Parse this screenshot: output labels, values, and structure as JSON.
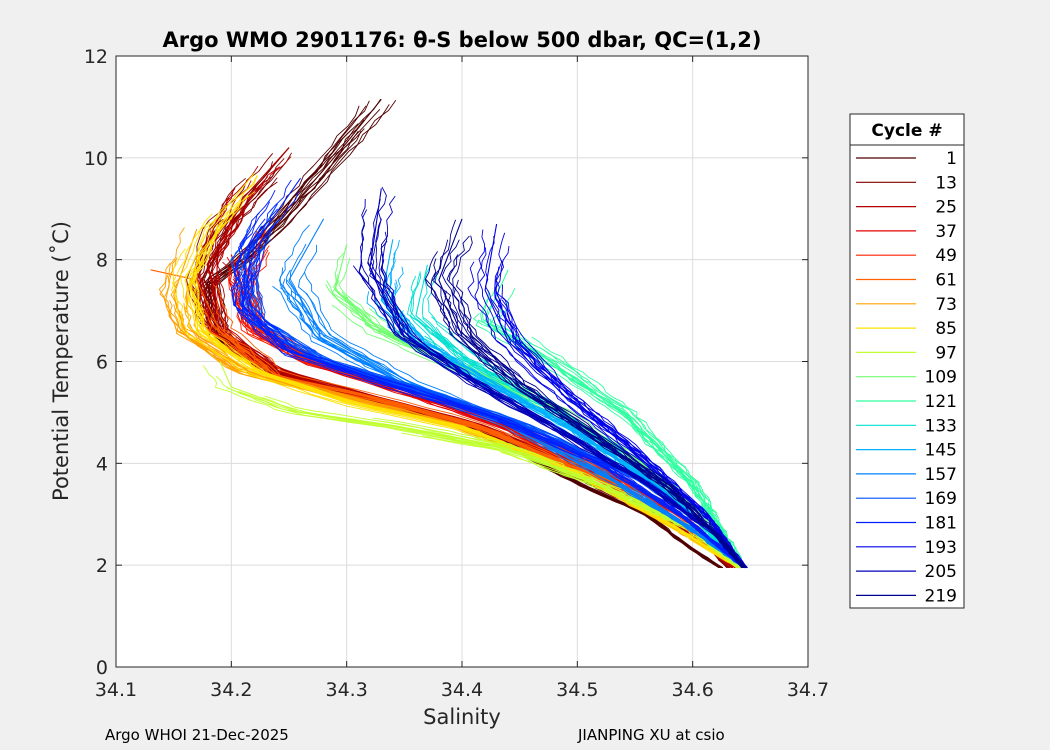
{
  "chart_data": {
    "type": "line",
    "title": "Argo WMO 2901176: θ-S below 500 dbar,  QC=(1,2)",
    "xlabel": "Salinity",
    "ylabel": "Potential Temperature (˚C)",
    "xlim": [
      34.1,
      34.7
    ],
    "ylim": [
      0,
      12
    ],
    "xticks": [
      34.1,
      34.2,
      34.3,
      34.4,
      34.5,
      34.6,
      34.7
    ],
    "xtick_labels": [
      "34.1",
      "34.2",
      "34.3",
      "34.4",
      "34.5",
      "34.6",
      "34.7"
    ],
    "yticks": [
      0,
      2,
      4,
      6,
      8,
      10,
      12
    ],
    "ytick_labels": [
      "0",
      "2",
      "4",
      "6",
      "8",
      "10",
      "12"
    ],
    "grid": true,
    "colormap": "jet",
    "legend": {
      "title": "Cycle #",
      "placement": "outside-right",
      "entries": [
        "1",
        "13",
        "25",
        "37",
        "49",
        "61",
        "73",
        "85",
        "97",
        "109",
        "121",
        "133",
        "145",
        "157",
        "169",
        "181",
        "193",
        "205",
        "219"
      ]
    },
    "series": [
      {
        "name": "1",
        "color": "#500000",
        "x": [
          34.33,
          34.3,
          34.27,
          34.24,
          34.21,
          34.18,
          34.19,
          34.25,
          34.33,
          34.42,
          34.5,
          34.56,
          34.6,
          34.625
        ],
        "y": [
          11.15,
          10.3,
          9.5,
          8.7,
          8.0,
          7.5,
          6.4,
          5.6,
          5.2,
          4.6,
          3.6,
          3.0,
          2.3,
          1.95
        ]
      },
      {
        "name": "13",
        "color": "#800000",
        "x": [
          34.25,
          34.22,
          34.19,
          34.17,
          34.18,
          34.24,
          34.33,
          34.43,
          34.52,
          34.58,
          34.62,
          34.63
        ],
        "y": [
          10.2,
          9.4,
          8.6,
          7.6,
          6.7,
          5.7,
          5.2,
          4.5,
          3.5,
          2.9,
          2.25,
          1.95
        ]
      },
      {
        "name": "25",
        "color": "#B40000",
        "x": [
          34.25,
          34.21,
          34.18,
          34.19,
          34.24,
          34.32,
          34.42,
          34.52,
          34.59,
          34.635
        ],
        "y": [
          10.2,
          9.2,
          7.9,
          6.6,
          5.8,
          5.3,
          4.7,
          3.7,
          2.8,
          1.95
        ]
      },
      {
        "name": "37",
        "color": "#E60000",
        "x": [
          34.2,
          34.22,
          34.27,
          34.34,
          34.43,
          34.52,
          34.59,
          34.64
        ],
        "y": [
          8.1,
          6.7,
          6.0,
          5.5,
          4.8,
          3.8,
          2.8,
          1.95
        ]
      },
      {
        "name": "49",
        "color": "#FF2000",
        "x": [
          34.23,
          34.21,
          34.22,
          34.27,
          34.35,
          34.44,
          34.53,
          34.6,
          34.64
        ],
        "y": [
          8.6,
          7.6,
          6.6,
          6.0,
          5.5,
          4.8,
          3.8,
          2.8,
          1.95
        ]
      },
      {
        "name": "61",
        "color": "#FF6000",
        "x": [
          34.13,
          34.17,
          34.19,
          34.24,
          34.32,
          34.42,
          34.52,
          34.59,
          34.64
        ],
        "y": [
          7.8,
          7.6,
          6.6,
          5.7,
          5.3,
          4.7,
          3.7,
          2.8,
          1.95
        ]
      },
      {
        "name": "73",
        "color": "#FFA000",
        "x": [
          34.17,
          34.15,
          34.16,
          34.21,
          34.3,
          34.4,
          34.5,
          34.58,
          34.64
        ],
        "y": [
          8.6,
          7.3,
          6.6,
          5.8,
          5.3,
          4.7,
          3.8,
          2.8,
          1.95
        ]
      },
      {
        "name": "85",
        "color": "#FFE000",
        "x": [
          34.22,
          34.18,
          34.16,
          34.17,
          34.22,
          34.3,
          34.4,
          34.5,
          34.58,
          34.64
        ],
        "y": [
          9.7,
          8.6,
          7.6,
          6.6,
          5.8,
          5.2,
          4.7,
          3.8,
          2.8,
          1.95
        ]
      },
      {
        "name": "97",
        "color": "#C0FF30",
        "x": [
          34.19,
          34.2,
          34.26,
          34.35,
          34.44,
          34.53,
          34.6,
          34.64
        ],
        "y": [
          6.0,
          5.5,
          5.0,
          4.7,
          4.3,
          3.5,
          2.7,
          1.95
        ]
      },
      {
        "name": "109",
        "color": "#70FF70",
        "x": [
          34.3,
          34.29,
          34.33,
          34.4,
          34.48,
          34.55,
          34.61,
          34.645
        ],
        "y": [
          8.3,
          7.4,
          6.6,
          5.9,
          5.1,
          4.1,
          3.0,
          1.95
        ]
      },
      {
        "name": "121",
        "color": "#30FFA0",
        "x": [
          34.44,
          34.42,
          34.47,
          34.54,
          34.6,
          34.645
        ],
        "y": [
          7.8,
          6.8,
          6.1,
          5.0,
          3.6,
          1.95
        ]
      },
      {
        "name": "133",
        "color": "#00E0D0",
        "x": [
          34.37,
          34.36,
          34.4,
          34.46,
          34.53,
          34.59,
          34.645
        ],
        "y": [
          7.9,
          6.9,
          6.1,
          5.3,
          4.3,
          3.2,
          1.95
        ]
      },
      {
        "name": "145",
        "color": "#00B0FF",
        "x": [
          34.34,
          34.33,
          34.36,
          34.42,
          34.5,
          34.57,
          34.62,
          34.645
        ],
        "y": [
          8.4,
          7.2,
          6.4,
          5.6,
          4.6,
          3.5,
          2.6,
          1.95
        ]
      },
      {
        "name": "157",
        "color": "#0080FF",
        "x": [
          34.28,
          34.25,
          34.28,
          34.35,
          34.44,
          34.53,
          34.6,
          34.645
        ],
        "y": [
          8.8,
          7.6,
          6.5,
          5.6,
          4.8,
          3.7,
          2.7,
          1.95
        ]
      },
      {
        "name": "169",
        "color": "#0050FF",
        "x": [
          34.24,
          34.21,
          34.22,
          34.28,
          34.37,
          34.47,
          34.56,
          34.62,
          34.645
        ],
        "y": [
          9.1,
          7.9,
          6.8,
          6.0,
          5.4,
          4.6,
          3.6,
          2.6,
          1.95
        ]
      },
      {
        "name": "181",
        "color": "#0020FF",
        "x": [
          34.26,
          34.22,
          34.21,
          34.25,
          34.33,
          34.43,
          34.52,
          34.59,
          34.645
        ],
        "y": [
          9.6,
          8.3,
          7.1,
          6.2,
          5.6,
          4.9,
          4.0,
          3.0,
          1.95
        ]
      },
      {
        "name": "193",
        "color": "#0000E8",
        "x": [
          34.43,
          34.42,
          34.44,
          34.49,
          34.55,
          34.61,
          34.645
        ],
        "y": [
          8.7,
          7.4,
          6.4,
          5.3,
          4.2,
          3.0,
          1.95
        ]
      },
      {
        "name": "205",
        "color": "#0000B8",
        "x": [
          34.33,
          34.32,
          34.35,
          34.41,
          34.48,
          34.56,
          34.62,
          34.645
        ],
        "y": [
          9.4,
          7.8,
          6.5,
          5.6,
          4.7,
          3.6,
          2.6,
          1.95
        ]
      },
      {
        "name": "219",
        "color": "#000090",
        "x": [
          34.4,
          34.38,
          34.4,
          34.45,
          34.51,
          34.58,
          34.62,
          34.645
        ],
        "y": [
          8.8,
          7.6,
          6.5,
          5.5,
          4.6,
          3.5,
          2.6,
          1.95
        ]
      }
    ]
  },
  "footer": {
    "left": "Argo WHOI 21-Dec-2025",
    "right": "JIANPING XU at csio"
  }
}
